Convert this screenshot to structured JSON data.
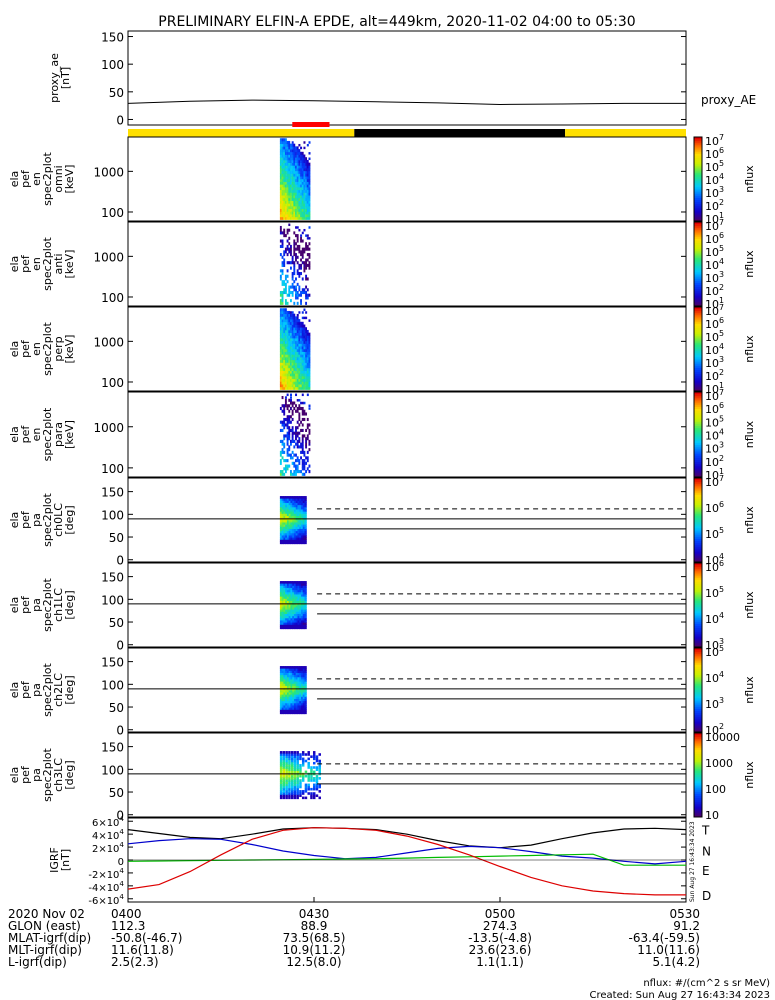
{
  "title": "PRELIMINARY ELFIN-A EPDE, alt=449km, 2020-11-02 04:00 to 05:30",
  "colors": {
    "frame": "#000000",
    "proxy_line": "#000000",
    "bar_yellow": "#ffe000",
    "bar_black": "#000000",
    "bar_red": "#ff0000",
    "igrf_T": "#000000",
    "igrf_N": "#0000cc",
    "igrf_E": "#00bb00",
    "igrf_D": "#dd0000"
  },
  "chart_data": [
    {
      "type": "line",
      "id": "proxy_ae",
      "ylabel_lines": [
        "proxy_ae",
        "[nT]"
      ],
      "ylim": [
        -10,
        160
      ],
      "yticks": [
        "0",
        "50",
        "100",
        "150"
      ],
      "ytick_values": [
        0,
        50,
        100,
        150
      ],
      "legend": "proxy_AE",
      "x_minutes": [
        0,
        10,
        20,
        30,
        40,
        50,
        60,
        70,
        80,
        90
      ],
      "values": [
        29,
        33,
        35,
        34,
        32,
        30,
        27,
        28,
        29,
        29
      ]
    },
    {
      "type": "bar",
      "id": "orbit_bar",
      "segments": [
        {
          "from": 0,
          "to": 36.5,
          "color": "yellow"
        },
        {
          "from": 36.5,
          "to": 70.5,
          "color": "black"
        },
        {
          "from": 70.5,
          "to": 90,
          "color": "yellow"
        },
        {
          "from": 26.5,
          "to": 32.5,
          "color": "red",
          "raised": true
        }
      ]
    },
    {
      "type": "heatmap",
      "id": "en_omni",
      "ylabel_lines": [
        "ela",
        "pef",
        "en",
        "spec2plot",
        "omni",
        "[keV]"
      ],
      "scale": "log",
      "yticks": [
        "100",
        "1000"
      ],
      "ytick_values": [
        100,
        1000
      ],
      "ylim": [
        60,
        7000
      ],
      "colorbar_ticks": [
        "10^1",
        "10^2",
        "10^3",
        "10^4",
        "10^5",
        "10^6",
        "10^7"
      ],
      "colorbar_label": "nflux"
    },
    {
      "type": "heatmap",
      "id": "en_anti",
      "ylabel_lines": [
        "ela",
        "pef",
        "en",
        "spec2plot",
        "anti",
        "[keV]"
      ],
      "scale": "log",
      "yticks": [
        "100",
        "1000"
      ],
      "ytick_values": [
        100,
        1000
      ],
      "ylim": [
        60,
        7000
      ],
      "colorbar_ticks": [
        "10^1",
        "10^2",
        "10^3",
        "10^4",
        "10^5",
        "10^6",
        "10^7"
      ],
      "colorbar_label": "nflux"
    },
    {
      "type": "heatmap",
      "id": "en_perp",
      "ylabel_lines": [
        "ela",
        "pef",
        "en",
        "spec2plot",
        "perp",
        "[keV]"
      ],
      "scale": "log",
      "yticks": [
        "100",
        "1000"
      ],
      "ytick_values": [
        100,
        1000
      ],
      "ylim": [
        60,
        7000
      ],
      "colorbar_ticks": [
        "10^1",
        "10^2",
        "10^3",
        "10^4",
        "10^5",
        "10^6",
        "10^7"
      ],
      "colorbar_label": "nflux"
    },
    {
      "type": "heatmap",
      "id": "en_para",
      "ylabel_lines": [
        "ela",
        "pef",
        "en",
        "spec2plot",
        "para",
        "[keV]"
      ],
      "scale": "log",
      "yticks": [
        "100",
        "1000"
      ],
      "ytick_values": [
        100,
        1000
      ],
      "ylim": [
        60,
        7000
      ],
      "colorbar_ticks": [
        "10^1",
        "10^2",
        "10^3",
        "10^4",
        "10^5",
        "10^6",
        "10^7"
      ],
      "colorbar_label": "nflux"
    },
    {
      "type": "heatmap",
      "id": "pa_ch0",
      "ylabel_lines": [
        "ela",
        "pef",
        "pa",
        "spec2plot",
        "ch0LC",
        "[deg]"
      ],
      "scale": "linear",
      "yticks": [
        "0",
        "50",
        "100",
        "150"
      ],
      "ytick_values": [
        0,
        50,
        100,
        150
      ],
      "ylim": [
        -5,
        180
      ],
      "colorbar_ticks": [
        "10^4",
        "10^5",
        "10^6",
        "10^7"
      ],
      "colorbar_label": "nflux"
    },
    {
      "type": "heatmap",
      "id": "pa_ch1",
      "ylabel_lines": [
        "ela",
        "pef",
        "pa",
        "spec2plot",
        "ch1LC",
        "[deg]"
      ],
      "scale": "linear",
      "yticks": [
        "0",
        "50",
        "100",
        "150"
      ],
      "ytick_values": [
        0,
        50,
        100,
        150
      ],
      "ylim": [
        -5,
        180
      ],
      "colorbar_ticks": [
        "10^3",
        "10^4",
        "10^5",
        "10^6"
      ],
      "colorbar_label": "nflux"
    },
    {
      "type": "heatmap",
      "id": "pa_ch2",
      "ylabel_lines": [
        "ela",
        "pef",
        "pa",
        "spec2plot",
        "ch2LC",
        "[deg]"
      ],
      "scale": "linear",
      "yticks": [
        "0",
        "50",
        "100",
        "150"
      ],
      "ytick_values": [
        0,
        50,
        100,
        150
      ],
      "ylim": [
        -5,
        180
      ],
      "colorbar_ticks": [
        "10^2",
        "10^3",
        "10^4",
        "10^5"
      ],
      "colorbar_label": "nflux"
    },
    {
      "type": "heatmap",
      "id": "pa_ch3",
      "ylabel_lines": [
        "ela",
        "pef",
        "pa",
        "spec2plot",
        "ch3LC",
        "[deg]"
      ],
      "scale": "linear",
      "yticks": [
        "0",
        "50",
        "100",
        "150"
      ],
      "ytick_values": [
        0,
        50,
        100,
        150
      ],
      "ylim": [
        -5,
        180
      ],
      "colorbar_ticks": [
        "10",
        "100",
        "1000",
        "10000"
      ],
      "colorbar_label": "nflux"
    },
    {
      "type": "line",
      "id": "igrf",
      "ylabel_lines": [
        "IGRF",
        "[nT]"
      ],
      "ylim": [
        -65000,
        65000
      ],
      "yticks": [
        "-6×10^4",
        "-4×10^4",
        "-2×10^4",
        "0",
        "2×10^4",
        "4×10^4",
        "6×10^4"
      ],
      "ytick_values": [
        -60000,
        -40000,
        -20000,
        0,
        20000,
        40000,
        60000
      ],
      "x_minutes": [
        0,
        5,
        10,
        15,
        20,
        25,
        30,
        35,
        40,
        45,
        50,
        55,
        60,
        65,
        70,
        75,
        80,
        85,
        90
      ],
      "series": [
        {
          "name": "T",
          "values": [
            47000,
            41000,
            35000,
            33000,
            40000,
            48000,
            50000,
            49000,
            47000,
            40000,
            30000,
            22000,
            19000,
            23000,
            33000,
            42000,
            48000,
            49000,
            47000
          ]
        },
        {
          "name": "N",
          "values": [
            25000,
            30000,
            33000,
            32000,
            24000,
            14000,
            7000,
            2000,
            4000,
            11000,
            18000,
            21000,
            19000,
            13000,
            6000,
            3000,
            -2000,
            -6000,
            -2000
          ]
        },
        {
          "name": "E",
          "values": [
            -2000,
            -1500,
            -1000,
            -500,
            0,
            500,
            1000,
            1500,
            2000,
            3000,
            4000,
            5000,
            6000,
            7000,
            8000,
            9000,
            -8000,
            -8000,
            -8000
          ]
        },
        {
          "name": "D",
          "values": [
            -45000,
            -38000,
            -18000,
            8000,
            32000,
            46000,
            50000,
            49000,
            46000,
            37000,
            24000,
            8000,
            -10000,
            -27000,
            -40000,
            -48000,
            -52000,
            -54000,
            -54000
          ]
        }
      ],
      "side_stamp": "Sun Aug 27 16:43:34 2023"
    }
  ],
  "xaxis": {
    "row_labels": [
      "2020 Nov 02",
      "GLON (east)",
      "MLAT-igrf(dip)",
      "MLT-igrf(dip)",
      "L-igrf(dip)"
    ],
    "columns": [
      {
        "minute": 0,
        "values": [
          "0400",
          "112.3",
          "-50.8(-46.7)",
          "11.6(11.8)",
          "2.5(2.3)"
        ]
      },
      {
        "minute": 30,
        "values": [
          "0430",
          "88.9",
          "73.5(68.5)",
          "10.9(11.2)",
          "12.5(8.0)"
        ]
      },
      {
        "minute": 60,
        "values": [
          "0500",
          "274.3",
          "-13.5(-4.8)",
          "23.6(23.6)",
          "1.1(1.1)"
        ]
      },
      {
        "minute": 90,
        "values": [
          "0530",
          "91.2",
          "-63.4(-59.5)",
          "11.0(11.6)",
          "5.1(4.2)"
        ]
      }
    ]
  },
  "footer": {
    "units": "nflux: #/(cm^2 s sr MeV)",
    "created": "Created: Sun Aug 27 16:43:34 2023"
  }
}
